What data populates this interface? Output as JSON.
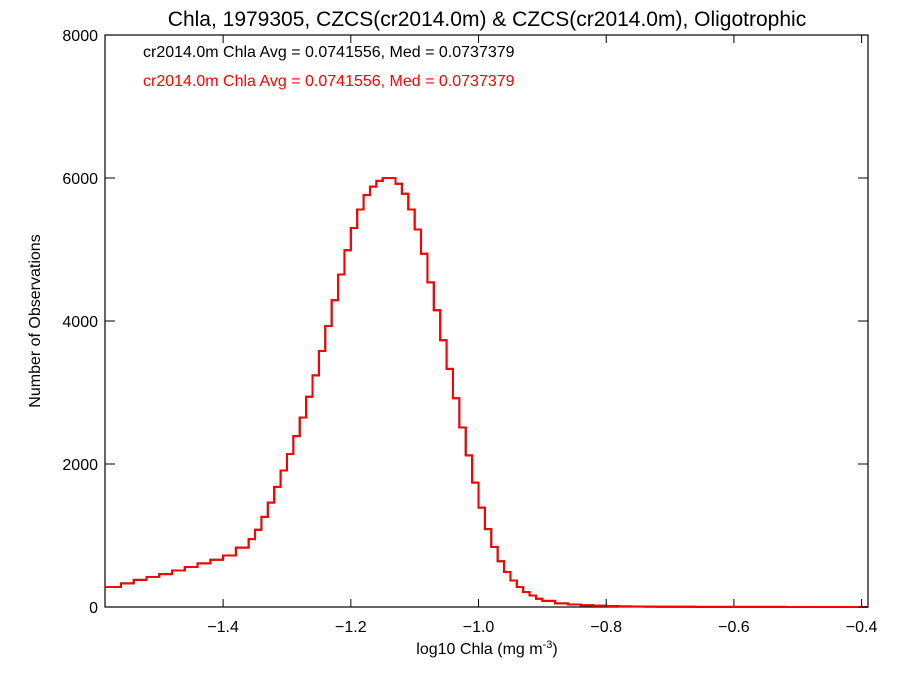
{
  "chart_data": {
    "type": "histogram",
    "title": "Chla, 1979305, CZCS(cr2014.0m) & CZCS(cr2014.0m), Oligotrophic",
    "xlabel_main": "log10 Chla (mg m",
    "xlabel_sup": "-3",
    "xlabel_end": ")",
    "ylabel": "Number of Observations",
    "xlim": [
      -1.585,
      -0.39
    ],
    "ylim": [
      0,
      8000
    ],
    "x_ticks": [
      {
        "value": -1.4,
        "label": "−1.4"
      },
      {
        "value": -1.2,
        "label": "−1.2"
      },
      {
        "value": -1.0,
        "label": "−1.0"
      },
      {
        "value": -0.8,
        "label": "−0.8"
      },
      {
        "value": -0.6,
        "label": "−0.6"
      },
      {
        "value": -0.4,
        "label": "−0.4"
      }
    ],
    "y_ticks": [
      {
        "value": 0,
        "label": "0"
      },
      {
        "value": 2000,
        "label": "2000"
      },
      {
        "value": 4000,
        "label": "4000"
      },
      {
        "value": 6000,
        "label": "6000"
      },
      {
        "value": 8000,
        "label": "8000"
      }
    ],
    "grid": false,
    "legend_position": "top-left",
    "series": [
      {
        "label": "cr2014.0m Chla Avg = 0.0741556, Med = 0.0737379",
        "color": "#000000",
        "x": [
          -1.585,
          -1.56,
          -1.54,
          -1.52,
          -1.5,
          -1.48,
          -1.46,
          -1.44,
          -1.42,
          -1.4,
          -1.38,
          -1.36,
          -1.35,
          -1.34,
          -1.33,
          -1.32,
          -1.31,
          -1.3,
          -1.29,
          -1.28,
          -1.27,
          -1.26,
          -1.25,
          -1.24,
          -1.23,
          -1.22,
          -1.21,
          -1.2,
          -1.19,
          -1.18,
          -1.17,
          -1.16,
          -1.15,
          -1.14,
          -1.13,
          -1.12,
          -1.11,
          -1.1,
          -1.09,
          -1.08,
          -1.07,
          -1.06,
          -1.05,
          -1.04,
          -1.03,
          -1.02,
          -1.01,
          -1.0,
          -0.99,
          -0.98,
          -0.97,
          -0.96,
          -0.95,
          -0.94,
          -0.93,
          -0.92,
          -0.91,
          -0.9,
          -0.88,
          -0.86,
          -0.84,
          -0.82,
          -0.8,
          -0.78,
          -0.76,
          -0.74,
          -0.72,
          -0.7,
          -0.68,
          -0.66,
          -0.64,
          -0.62,
          -0.6,
          -0.58,
          -0.56,
          -0.54,
          -0.52,
          -0.5,
          -0.48,
          -0.46,
          -0.44,
          -0.42,
          -0.4
        ],
        "y": [
          280,
          330,
          380,
          420,
          460,
          510,
          560,
          610,
          660,
          720,
          830,
          950,
          1080,
          1260,
          1460,
          1680,
          1910,
          2140,
          2390,
          2650,
          2940,
          3240,
          3580,
          3930,
          4290,
          4650,
          4990,
          5300,
          5560,
          5760,
          5880,
          5960,
          6000,
          6000,
          5920,
          5780,
          5560,
          5280,
          4940,
          4540,
          4150,
          3730,
          3330,
          2920,
          2510,
          2120,
          1740,
          1390,
          1090,
          840,
          640,
          490,
          370,
          280,
          210,
          160,
          115,
          85,
          50,
          35,
          25,
          18,
          12,
          9,
          7,
          5,
          4,
          3,
          3,
          2,
          2,
          1,
          1,
          1,
          1,
          1,
          0,
          0,
          0,
          0,
          0,
          0,
          0
        ]
      },
      {
        "label": "cr2014.0m Chla Avg = 0.0741556, Med = 0.0737379",
        "color": "#ff0000",
        "x": [
          -1.585,
          -1.56,
          -1.54,
          -1.52,
          -1.5,
          -1.48,
          -1.46,
          -1.44,
          -1.42,
          -1.4,
          -1.38,
          -1.36,
          -1.35,
          -1.34,
          -1.33,
          -1.32,
          -1.31,
          -1.3,
          -1.29,
          -1.28,
          -1.27,
          -1.26,
          -1.25,
          -1.24,
          -1.23,
          -1.22,
          -1.21,
          -1.2,
          -1.19,
          -1.18,
          -1.17,
          -1.16,
          -1.15,
          -1.14,
          -1.13,
          -1.12,
          -1.11,
          -1.1,
          -1.09,
          -1.08,
          -1.07,
          -1.06,
          -1.05,
          -1.04,
          -1.03,
          -1.02,
          -1.01,
          -1.0,
          -0.99,
          -0.98,
          -0.97,
          -0.96,
          -0.95,
          -0.94,
          -0.93,
          -0.92,
          -0.91,
          -0.9,
          -0.88,
          -0.86,
          -0.84,
          -0.82,
          -0.8,
          -0.78,
          -0.76,
          -0.74,
          -0.72,
          -0.7,
          -0.68,
          -0.66,
          -0.64,
          -0.62,
          -0.6,
          -0.58,
          -0.56,
          -0.54,
          -0.52,
          -0.5,
          -0.48,
          -0.46,
          -0.44,
          -0.42,
          -0.4
        ],
        "y": [
          280,
          330,
          380,
          420,
          460,
          510,
          560,
          610,
          660,
          720,
          830,
          950,
          1080,
          1260,
          1460,
          1680,
          1910,
          2140,
          2390,
          2650,
          2940,
          3240,
          3580,
          3930,
          4290,
          4650,
          4990,
          5300,
          5560,
          5760,
          5880,
          5960,
          6000,
          6000,
          5920,
          5780,
          5560,
          5280,
          4940,
          4540,
          4150,
          3730,
          3330,
          2920,
          2510,
          2120,
          1740,
          1390,
          1090,
          840,
          640,
          490,
          370,
          280,
          210,
          160,
          115,
          85,
          50,
          35,
          25,
          18,
          12,
          9,
          7,
          5,
          4,
          3,
          3,
          2,
          2,
          1,
          1,
          1,
          1,
          1,
          0,
          0,
          0,
          0,
          0,
          0,
          0
        ]
      }
    ]
  }
}
